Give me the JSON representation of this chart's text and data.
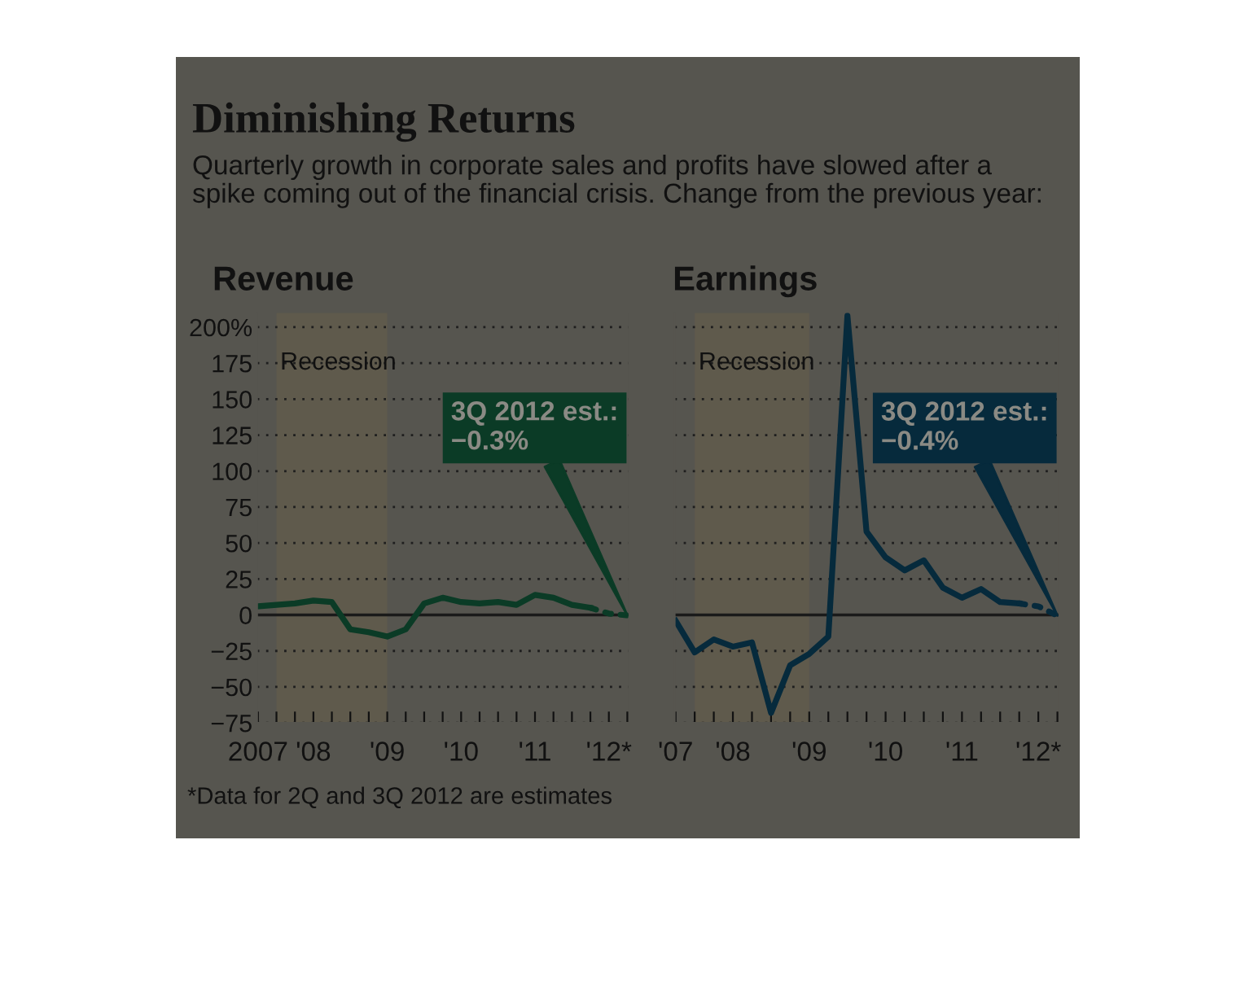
{
  "chart_data": [
    {
      "type": "line",
      "title": "Diminishing Returns",
      "subtitle": "Quarterly growth in corporate sales and profits have slowed after a spike coming out of the financial crisis. Change from the previous year:",
      "xlabel": "Revenue",
      "categories": [
        "2007",
        null,
        null,
        "'08",
        null,
        null,
        null,
        "'09",
        null,
        null,
        null,
        "'10",
        null,
        null,
        null,
        "'11",
        null,
        null,
        null,
        "'12*",
        null
      ],
      "series": [
        {
          "color": "#0b3b26",
          "line_style": "solid",
          "values": [
            6,
            7,
            8,
            10,
            9,
            -10,
            -12,
            -15,
            -10,
            8,
            12,
            9,
            8,
            9,
            7,
            14,
            12,
            7,
            5,
            null,
            null
          ]
        },
        {
          "color": "#0b3b26",
          "line_style": "dotted",
          "values": [
            null,
            null,
            null,
            null,
            null,
            null,
            null,
            null,
            null,
            null,
            null,
            null,
            null,
            null,
            null,
            null,
            null,
            null,
            5,
            1,
            -0.3
          ]
        }
      ],
      "ylim": [
        -75,
        210
      ],
      "yticks": [
        {
          "value": 200,
          "label": "200%"
        },
        175,
        150,
        125,
        100,
        75,
        50,
        25,
        0,
        {
          "value": -25,
          "label": "−25"
        },
        {
          "value": -50,
          "label": "−50"
        },
        {
          "value": -75,
          "label": "−75"
        }
      ],
      "grid": "y",
      "legend": false,
      "ref_lines": [
        {
          "axis": "y",
          "value": 0,
          "color": "#1a1a1a"
        }
      ],
      "annotations": [
        "3Q 2012 est.:\n−0.3%",
        "*Data for 2Q and 3Q 2012 are estimates",
        "Recession"
      ]
    },
    {
      "type": "line",
      "xlabel": "Earnings",
      "categories": [
        "'07",
        null,
        null,
        "'08",
        null,
        null,
        null,
        "'09",
        null,
        null,
        null,
        "'10",
        null,
        null,
        null,
        "'11",
        null,
        null,
        null,
        "'12*",
        null
      ],
      "series": [
        {
          "color": "#062a3c",
          "line_style": "solid",
          "values": [
            -4,
            -26,
            -17,
            -22,
            -19,
            -68,
            -35,
            -27,
            -15,
            208,
            58,
            40,
            31,
            38,
            19,
            12,
            18,
            9,
            8,
            null,
            null
          ]
        },
        {
          "color": "#062a3c",
          "line_style": "dotted",
          "values": [
            null,
            null,
            null,
            null,
            null,
            null,
            null,
            null,
            null,
            null,
            null,
            null,
            null,
            null,
            null,
            null,
            null,
            null,
            8,
            6,
            -0.4
          ]
        }
      ],
      "ylim": [
        -75,
        210
      ],
      "yticks": [
        200,
        175,
        150,
        125,
        100,
        75,
        50,
        25,
        0,
        -25,
        -50,
        -75
      ],
      "tick_labels": "x",
      "grid": "y",
      "legend": false,
      "ref_lines": [
        {
          "axis": "y",
          "value": 0,
          "color": "#1a1a1a"
        }
      ],
      "annotations": [
        "3Q 2012 est.:\n−0.4%",
        "Recession"
      ]
    }
  ]
}
